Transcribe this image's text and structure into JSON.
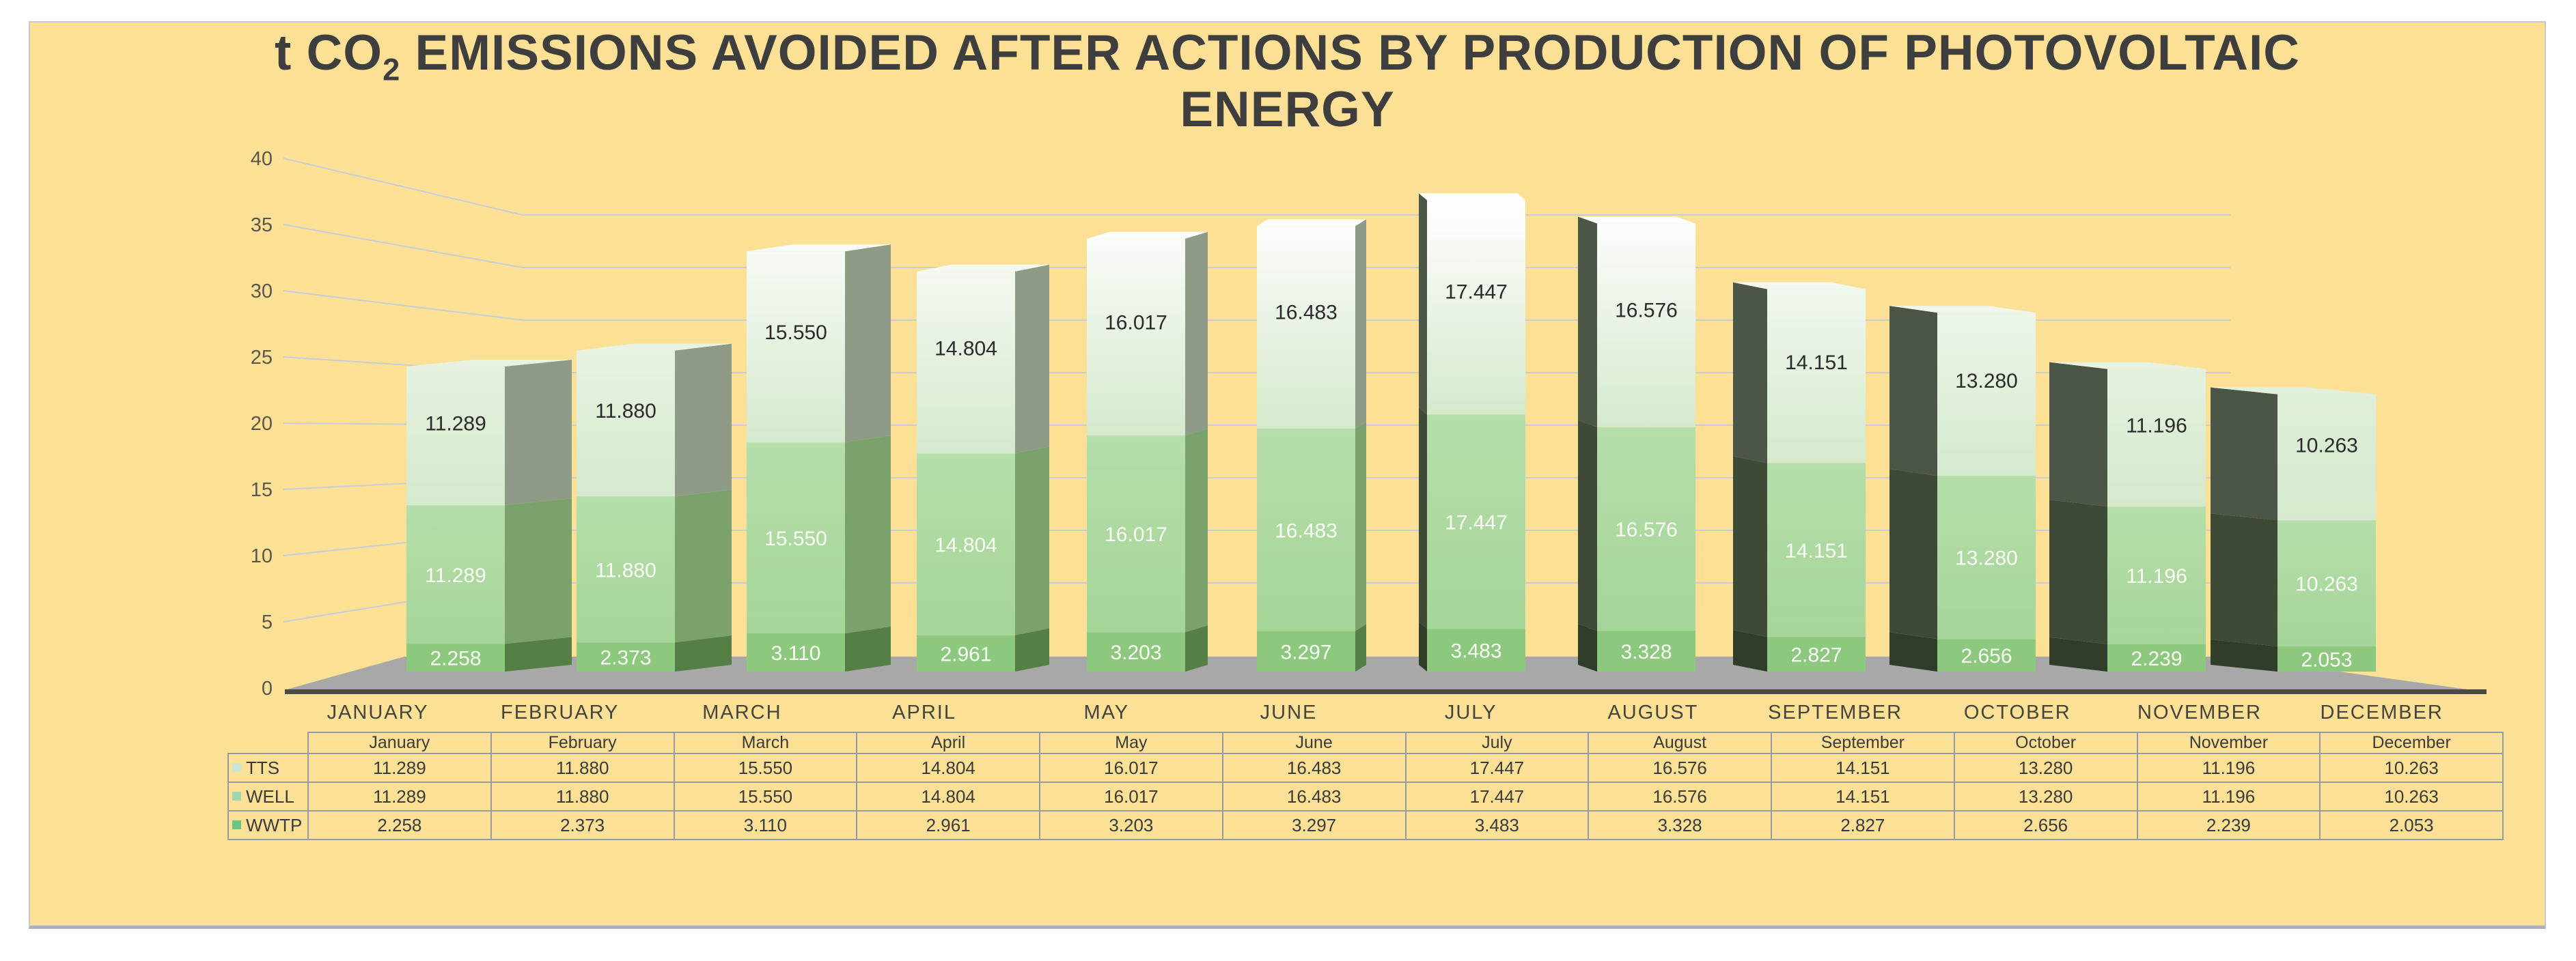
{
  "title": {
    "text_before_sub": "t CO",
    "subscript": "2",
    "text_after_sub": " EMISSIONS AVOIDED AFTER ACTIONS BY PRODUCTION OF PHOTOVOLTAIC",
    "line2": "ENERGY"
  },
  "chart_data": {
    "type": "bar",
    "stacked": true,
    "title": "t CO2 EMISSIONS AVOIDED AFTER ACTIONS BY PRODUCTION OF PHOTOVOLTAIC ENERGY",
    "categories_axis": [
      "JANUARY",
      "FEBRUARY",
      "MARCH",
      "APRIL",
      "MAY",
      "JUNE",
      "JULY",
      "AUGUST",
      "SEPTEMBER",
      "OCTOBER",
      "NOVEMBER",
      "DECEMBER"
    ],
    "ylim": [
      0,
      40
    ],
    "yticks": [
      0,
      5,
      10,
      15,
      20,
      25,
      30,
      35,
      40
    ],
    "grid": true,
    "legend_position": "table-left",
    "series": [
      {
        "name": "WWTP",
        "values": [
          2.258,
          2.373,
          3.11,
          2.961,
          3.203,
          3.297,
          3.483,
          3.328,
          2.827,
          2.656,
          2.239,
          2.053
        ],
        "labels": [
          "2.258",
          "2.373",
          "3.110",
          "2.961",
          "3.203",
          "3.297",
          "3.483",
          "3.328",
          "2.827",
          "2.656",
          "2.239",
          "2.053"
        ],
        "front_color": "#8CC87D",
        "side_color_light": "#567F46",
        "side_color_dark": "#2F3D29",
        "swatch_color": "#69C581"
      },
      {
        "name": "WELL",
        "values": [
          11.289,
          11.88,
          15.55,
          14.804,
          16.017,
          16.483,
          17.447,
          16.576,
          14.151,
          13.28,
          11.196,
          10.263
        ],
        "labels": [
          "11.289",
          "11.880",
          "15.550",
          "14.804",
          "16.017",
          "16.483",
          "17.447",
          "16.576",
          "14.151",
          "13.280",
          "11.196",
          "10.263"
        ],
        "front_color_top": "#B5DEAA",
        "front_color_bottom": "#A6D599",
        "side_color_light": "#7BA26C",
        "side_color_dark": "#3D4A36",
        "swatch_color": "#A0D8AD"
      },
      {
        "name": "TTS",
        "values": [
          11.289,
          11.88,
          15.55,
          14.804,
          16.017,
          16.483,
          17.447,
          16.576,
          14.151,
          13.28,
          11.196,
          10.263
        ],
        "labels": [
          "11.289",
          "11.880",
          "15.550",
          "14.804",
          "16.017",
          "16.483",
          "17.447",
          "16.576",
          "14.151",
          "13.280",
          "11.196",
          "10.263"
        ],
        "front_color_bottom": "#D5E9CD",
        "front_color_top_base": "#DFEFD8",
        "side_color_light": "#8E9C87",
        "side_color_dark": "#4C5646",
        "swatch_color": "#CBE6D2"
      }
    ],
    "colors": {
      "panel_background": "#FCE095",
      "gridline": "#C8CBD8",
      "floor": "#A8A8A8",
      "axis_line": "#4B4A43",
      "top_face_base": "#E3F0DC"
    }
  },
  "table": {
    "columns": [
      "January",
      "February",
      "March",
      "April",
      "May",
      "June",
      "July",
      "August",
      "September",
      "October",
      "November",
      "December"
    ],
    "rows": [
      {
        "label": "TTS",
        "values": [
          "11.289",
          "11.880",
          "15.550",
          "14.804",
          "16.017",
          "16.483",
          "17.447",
          "16.576",
          "14.151",
          "13.280",
          "11.196",
          "10.263"
        ]
      },
      {
        "label": "WELL",
        "values": [
          "11.289",
          "11.880",
          "15.550",
          "14.804",
          "16.017",
          "16.483",
          "17.447",
          "16.576",
          "14.151",
          "13.280",
          "11.196",
          "10.263"
        ]
      },
      {
        "label": "WWTP",
        "values": [
          "2.258",
          "2.373",
          "3.110",
          "2.961",
          "3.203",
          "3.297",
          "3.483",
          "3.328",
          "2.827",
          "2.656",
          "2.239",
          "2.053"
        ]
      }
    ]
  }
}
